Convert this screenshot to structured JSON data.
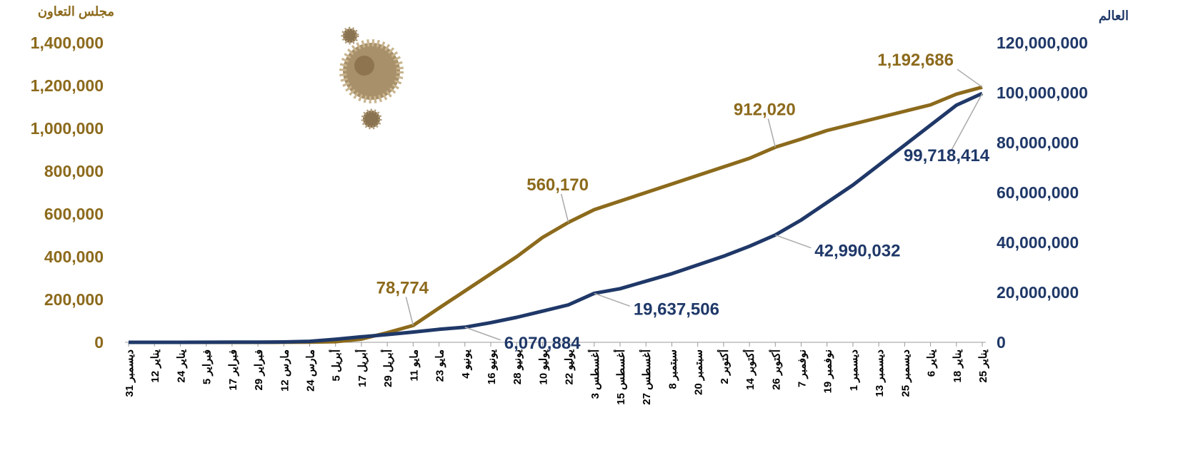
{
  "chart_data": {
    "type": "line",
    "categories": [
      "31 ديسمبر",
      "12 يناير",
      "24 يناير",
      "5 فبراير",
      "17 فبراير",
      "29 فبراير",
      "12 مارس",
      "24 مارس",
      "5 أبريل",
      "17 أبريل",
      "29 أبريل",
      "11 مايو",
      "23 مايو",
      "4 يونيو",
      "16 يونيو",
      "28 يونيو",
      "10 يوليو",
      "22 يوليو",
      "3 أغسطس",
      "15 أغسطس",
      "27 أغسطس",
      "8 سبتمبر",
      "20 سبتمبر",
      "2 أكتوبر",
      "14 أكتوبر",
      "26 أكتوبر",
      "7 نوفمبر",
      "19 نوفمبر",
      "1 ديسمبر",
      "13 ديسمبر",
      "25 ديسمبر",
      "6 يناير",
      "18 يناير",
      "25 يناير"
    ],
    "ylabel": "مجلس التعاون",
    "y2label": "العالم",
    "ylim": [
      0,
      1400000
    ],
    "yticks": [
      0,
      {
        "value": 200000,
        "label": "200,000"
      },
      {
        "value": 400000,
        "label": "400,000"
      },
      {
        "value": 600000,
        "label": "600,000"
      },
      {
        "value": 800000,
        "label": "800,000"
      },
      {
        "value": 1000000,
        "label": "1,000,000"
      },
      {
        "value": 1200000,
        "label": "1,200,000"
      },
      {
        "value": 1400000,
        "label": "1,400,000"
      }
    ],
    "y2lim": [
      0,
      120000000
    ],
    "y2ticks": [
      0,
      {
        "value": 20000000,
        "label": "20,000,000"
      },
      {
        "value": 40000000,
        "label": "40,000,000"
      },
      {
        "value": 60000000,
        "label": "60,000,000"
      },
      {
        "value": 80000000,
        "label": "80,000,000"
      },
      {
        "value": 100000000,
        "label": "100,000,000"
      },
      {
        "value": 120000000,
        "label": "120,000,000"
      }
    ],
    "series": [
      {
        "name": "مجلس التعاون",
        "color": "#8c6a1c",
        "axis": "y",
        "values": [
          0,
          0,
          0,
          0,
          0,
          0,
          500,
          1000,
          3000,
          15000,
          45000,
          78774,
          160000,
          240000,
          320000,
          400000,
          490000,
          560170,
          620000,
          660000,
          700000,
          740000,
          780000,
          820000,
          860000,
          912020,
          950000,
          990000,
          1020000,
          1050000,
          1080000,
          1110000,
          1160000,
          1192686
        ],
        "value_labels": [
          null,
          null,
          null,
          null,
          null,
          null,
          null,
          null,
          null,
          null,
          null,
          "78,774",
          null,
          null,
          null,
          null,
          null,
          "560,170",
          null,
          null,
          null,
          null,
          null,
          null,
          null,
          "912,020",
          null,
          null,
          null,
          null,
          null,
          null,
          null,
          "1,192,686"
        ]
      },
      {
        "name": "العالم",
        "color": "#1f3868",
        "axis": "y2",
        "values": [
          0,
          0,
          0,
          30000,
          70000,
          85000,
          130000,
          400000,
          1200000,
          2200000,
          3100000,
          4100000,
          5200000,
          6070884,
          7900000,
          10000000,
          12500000,
          15000000,
          19637506,
          21500000,
          24500000,
          27500000,
          31000000,
          34500000,
          38500000,
          42990032,
          49000000,
          56000000,
          63000000,
          71000000,
          79000000,
          87000000,
          95000000,
          99718414
        ],
        "value_labels": [
          null,
          null,
          null,
          null,
          null,
          null,
          null,
          null,
          null,
          null,
          null,
          null,
          null,
          "6,070,884",
          null,
          null,
          null,
          null,
          "19,637,506",
          null,
          null,
          null,
          null,
          null,
          null,
          "42,990,032",
          null,
          null,
          null,
          null,
          null,
          null,
          null,
          "99,718,414"
        ]
      }
    ]
  }
}
